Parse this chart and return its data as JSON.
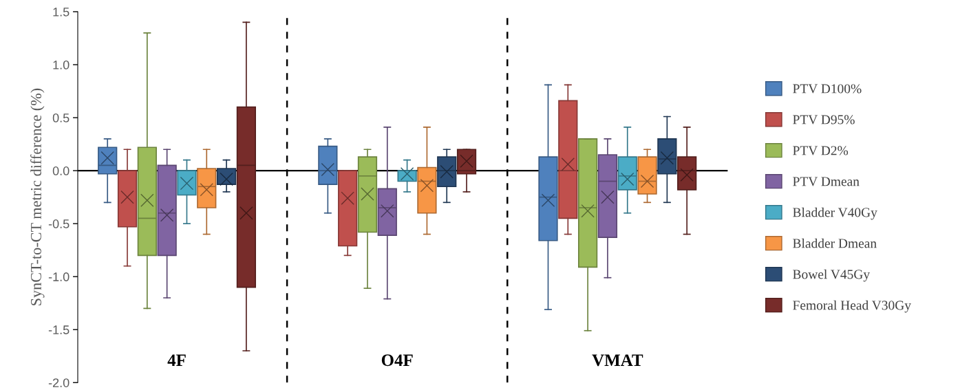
{
  "chart_data": {
    "type": "box",
    "ylabel": "SynCT-to-CT metric difference (%)",
    "categories": [
      "4F",
      "O4F",
      "VMAT"
    ],
    "ylim": [
      -2.0,
      1.5
    ],
    "yticks": [
      {
        "value": -2.0,
        "label": "-2.0"
      },
      {
        "value": -1.5,
        "label": "-1.5"
      },
      {
        "value": -1.0,
        "label": "-1.0"
      },
      {
        "value": -0.5,
        "label": "-0.5"
      },
      {
        "value": 0.0,
        "label": "0.0"
      },
      {
        "value": 0.5,
        "label": "0.5"
      },
      {
        "value": 1.0,
        "label": "1.0"
      },
      {
        "value": 1.5,
        "label": "1.5"
      }
    ],
    "grid": false,
    "legend": "right",
    "marker": "cross",
    "ref_lines": [
      {
        "axis": "y",
        "value": 0,
        "color": "#000000",
        "line_style": "solid"
      }
    ],
    "series": [
      {
        "name": "PTV D100%",
        "color": "#4f81bd",
        "boxes": [
          {
            "low": -0.3,
            "q1": -0.03,
            "median": 0.05,
            "q3": 0.22,
            "high": 0.3,
            "mean": 0.12
          },
          {
            "low": -0.4,
            "q1": -0.13,
            "median": 0.0,
            "q3": 0.23,
            "high": 0.3,
            "mean": 0.01
          },
          {
            "low": -1.31,
            "q1": -0.66,
            "median": -0.25,
            "q3": 0.13,
            "high": 0.81,
            "mean": -0.28
          }
        ]
      },
      {
        "name": "PTV D95%",
        "color": "#c0504d",
        "boxes": [
          {
            "low": -0.9,
            "q1": -0.53,
            "median": 0.0,
            "q3": 0.0,
            "high": 0.2,
            "mean": -0.25
          },
          {
            "low": -0.8,
            "q1": -0.71,
            "median": 0.0,
            "q3": 0.0,
            "high": 0.0,
            "mean": -0.26
          },
          {
            "low": -0.6,
            "q1": -0.45,
            "median": 0.0,
            "q3": 0.66,
            "high": 0.81,
            "mean": 0.06
          }
        ]
      },
      {
        "name": "PTV D2%",
        "color": "#9bbb59",
        "boxes": [
          {
            "low": -1.3,
            "q1": -0.8,
            "median": -0.45,
            "q3": 0.22,
            "high": 1.3,
            "mean": -0.28
          },
          {
            "low": -1.11,
            "q1": -0.58,
            "median": -0.05,
            "q3": 0.13,
            "high": 0.2,
            "mean": -0.22
          },
          {
            "low": -1.51,
            "q1": -0.91,
            "median": -0.35,
            "q3": 0.3,
            "high": 0.3,
            "mean": -0.38
          }
        ]
      },
      {
        "name": "PTV Dmean",
        "color": "#8064a2",
        "boxes": [
          {
            "low": -1.2,
            "q1": -0.8,
            "median": -0.4,
            "q3": 0.05,
            "high": 0.2,
            "mean": -0.42
          },
          {
            "low": -1.21,
            "q1": -0.61,
            "median": -0.35,
            "q3": -0.17,
            "high": 0.41,
            "mean": -0.38
          },
          {
            "low": -1.01,
            "q1": -0.63,
            "median": -0.1,
            "q3": 0.15,
            "high": 0.3,
            "mean": -0.25
          }
        ]
      },
      {
        "name": "Bladder V40Gy",
        "color": "#4bacc6",
        "boxes": [
          {
            "low": -0.5,
            "q1": -0.23,
            "median": 0.0,
            "q3": 0.0,
            "high": 0.1,
            "mean": -0.12
          },
          {
            "low": -0.2,
            "q1": -0.1,
            "median": 0.0,
            "q3": 0.0,
            "high": 0.1,
            "mean": -0.03
          },
          {
            "low": -0.4,
            "q1": -0.18,
            "median": -0.05,
            "q3": 0.13,
            "high": 0.41,
            "mean": -0.08
          }
        ]
      },
      {
        "name": "Bladder Dmean",
        "color": "#f79646",
        "boxes": [
          {
            "low": -0.6,
            "q1": -0.35,
            "median": -0.15,
            "q3": 0.02,
            "high": 0.2,
            "mean": -0.18
          },
          {
            "low": -0.6,
            "q1": -0.4,
            "median": -0.1,
            "q3": 0.03,
            "high": 0.41,
            "mean": -0.14
          },
          {
            "low": -0.3,
            "q1": -0.22,
            "median": -0.1,
            "q3": 0.13,
            "high": 0.2,
            "mean": -0.1
          }
        ]
      },
      {
        "name": "Bowel V45Gy",
        "color": "#2c4d75",
        "boxes": [
          {
            "low": -0.2,
            "q1": -0.13,
            "median": -0.13,
            "q3": 0.02,
            "high": 0.1,
            "mean": -0.08
          },
          {
            "low": -0.3,
            "q1": -0.15,
            "median": 0.0,
            "q3": 0.13,
            "high": 0.2,
            "mean": -0.01
          },
          {
            "low": -0.3,
            "q1": -0.03,
            "median": 0.11,
            "q3": 0.3,
            "high": 0.51,
            "mean": 0.12
          }
        ]
      },
      {
        "name": "Femoral Head V30Gy",
        "color": "#772c2a",
        "boxes": [
          {
            "low": -1.7,
            "q1": -1.1,
            "median": 0.05,
            "q3": 0.6,
            "high": 1.4,
            "mean": -0.4
          },
          {
            "low": -0.2,
            "q1": -0.03,
            "median": 0.0,
            "q3": 0.2,
            "high": 0.2,
            "mean": 0.09
          },
          {
            "low": -0.6,
            "q1": -0.18,
            "median": 0.0,
            "q3": 0.13,
            "high": 0.41,
            "mean": -0.04
          }
        ]
      }
    ]
  }
}
